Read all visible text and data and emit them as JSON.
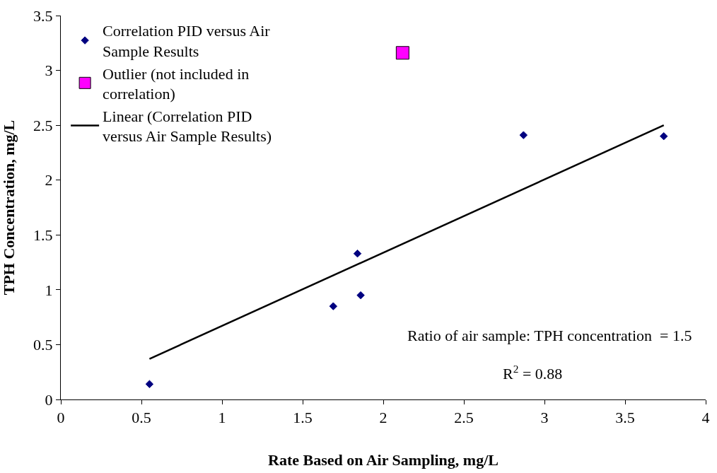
{
  "chart_data": {
    "type": "scatter",
    "xlabel": "Rate Based on Air Sampling, mg/L",
    "ylabel": "TPH Concentration, mg/L",
    "series": [
      {
        "name": "Correlation PID versus Air Sample Results",
        "type": "scatter",
        "marker": "diamond",
        "color": "#000080",
        "x": [
          0.55,
          1.69,
          1.84,
          1.86,
          2.87,
          3.74
        ],
        "values": [
          0.14,
          0.85,
          1.33,
          0.95,
          2.41,
          2.4
        ]
      },
      {
        "name": "Outlier (not included in correlation)",
        "type": "scatter",
        "marker": "square",
        "color": "#ff00ff",
        "x": [
          2.12
        ],
        "values": [
          3.16
        ]
      },
      {
        "name": "Linear (Correlation PID versus Air Sample Results)",
        "type": "line",
        "marker": "none",
        "line_style": "solid",
        "color": "#000000",
        "x": [
          0.55,
          3.74
        ],
        "values": [
          0.37,
          2.5
        ]
      }
    ],
    "annotations": [
      {
        "text": "Ratio of air sample: TPH concentration  = 1.5"
      },
      {
        "text": "R$^{2}$ = 0.88"
      }
    ],
    "xlim": [
      0,
      4
    ],
    "xticks": [
      0,
      0.5,
      1,
      1.5,
      2,
      2.5,
      3,
      3.5,
      4
    ],
    "ylim": [
      0,
      3.5
    ],
    "yticks": [
      0,
      0.5,
      1,
      1.5,
      2,
      2.5,
      3,
      3.5
    ],
    "grid": false,
    "legend": "top left"
  }
}
